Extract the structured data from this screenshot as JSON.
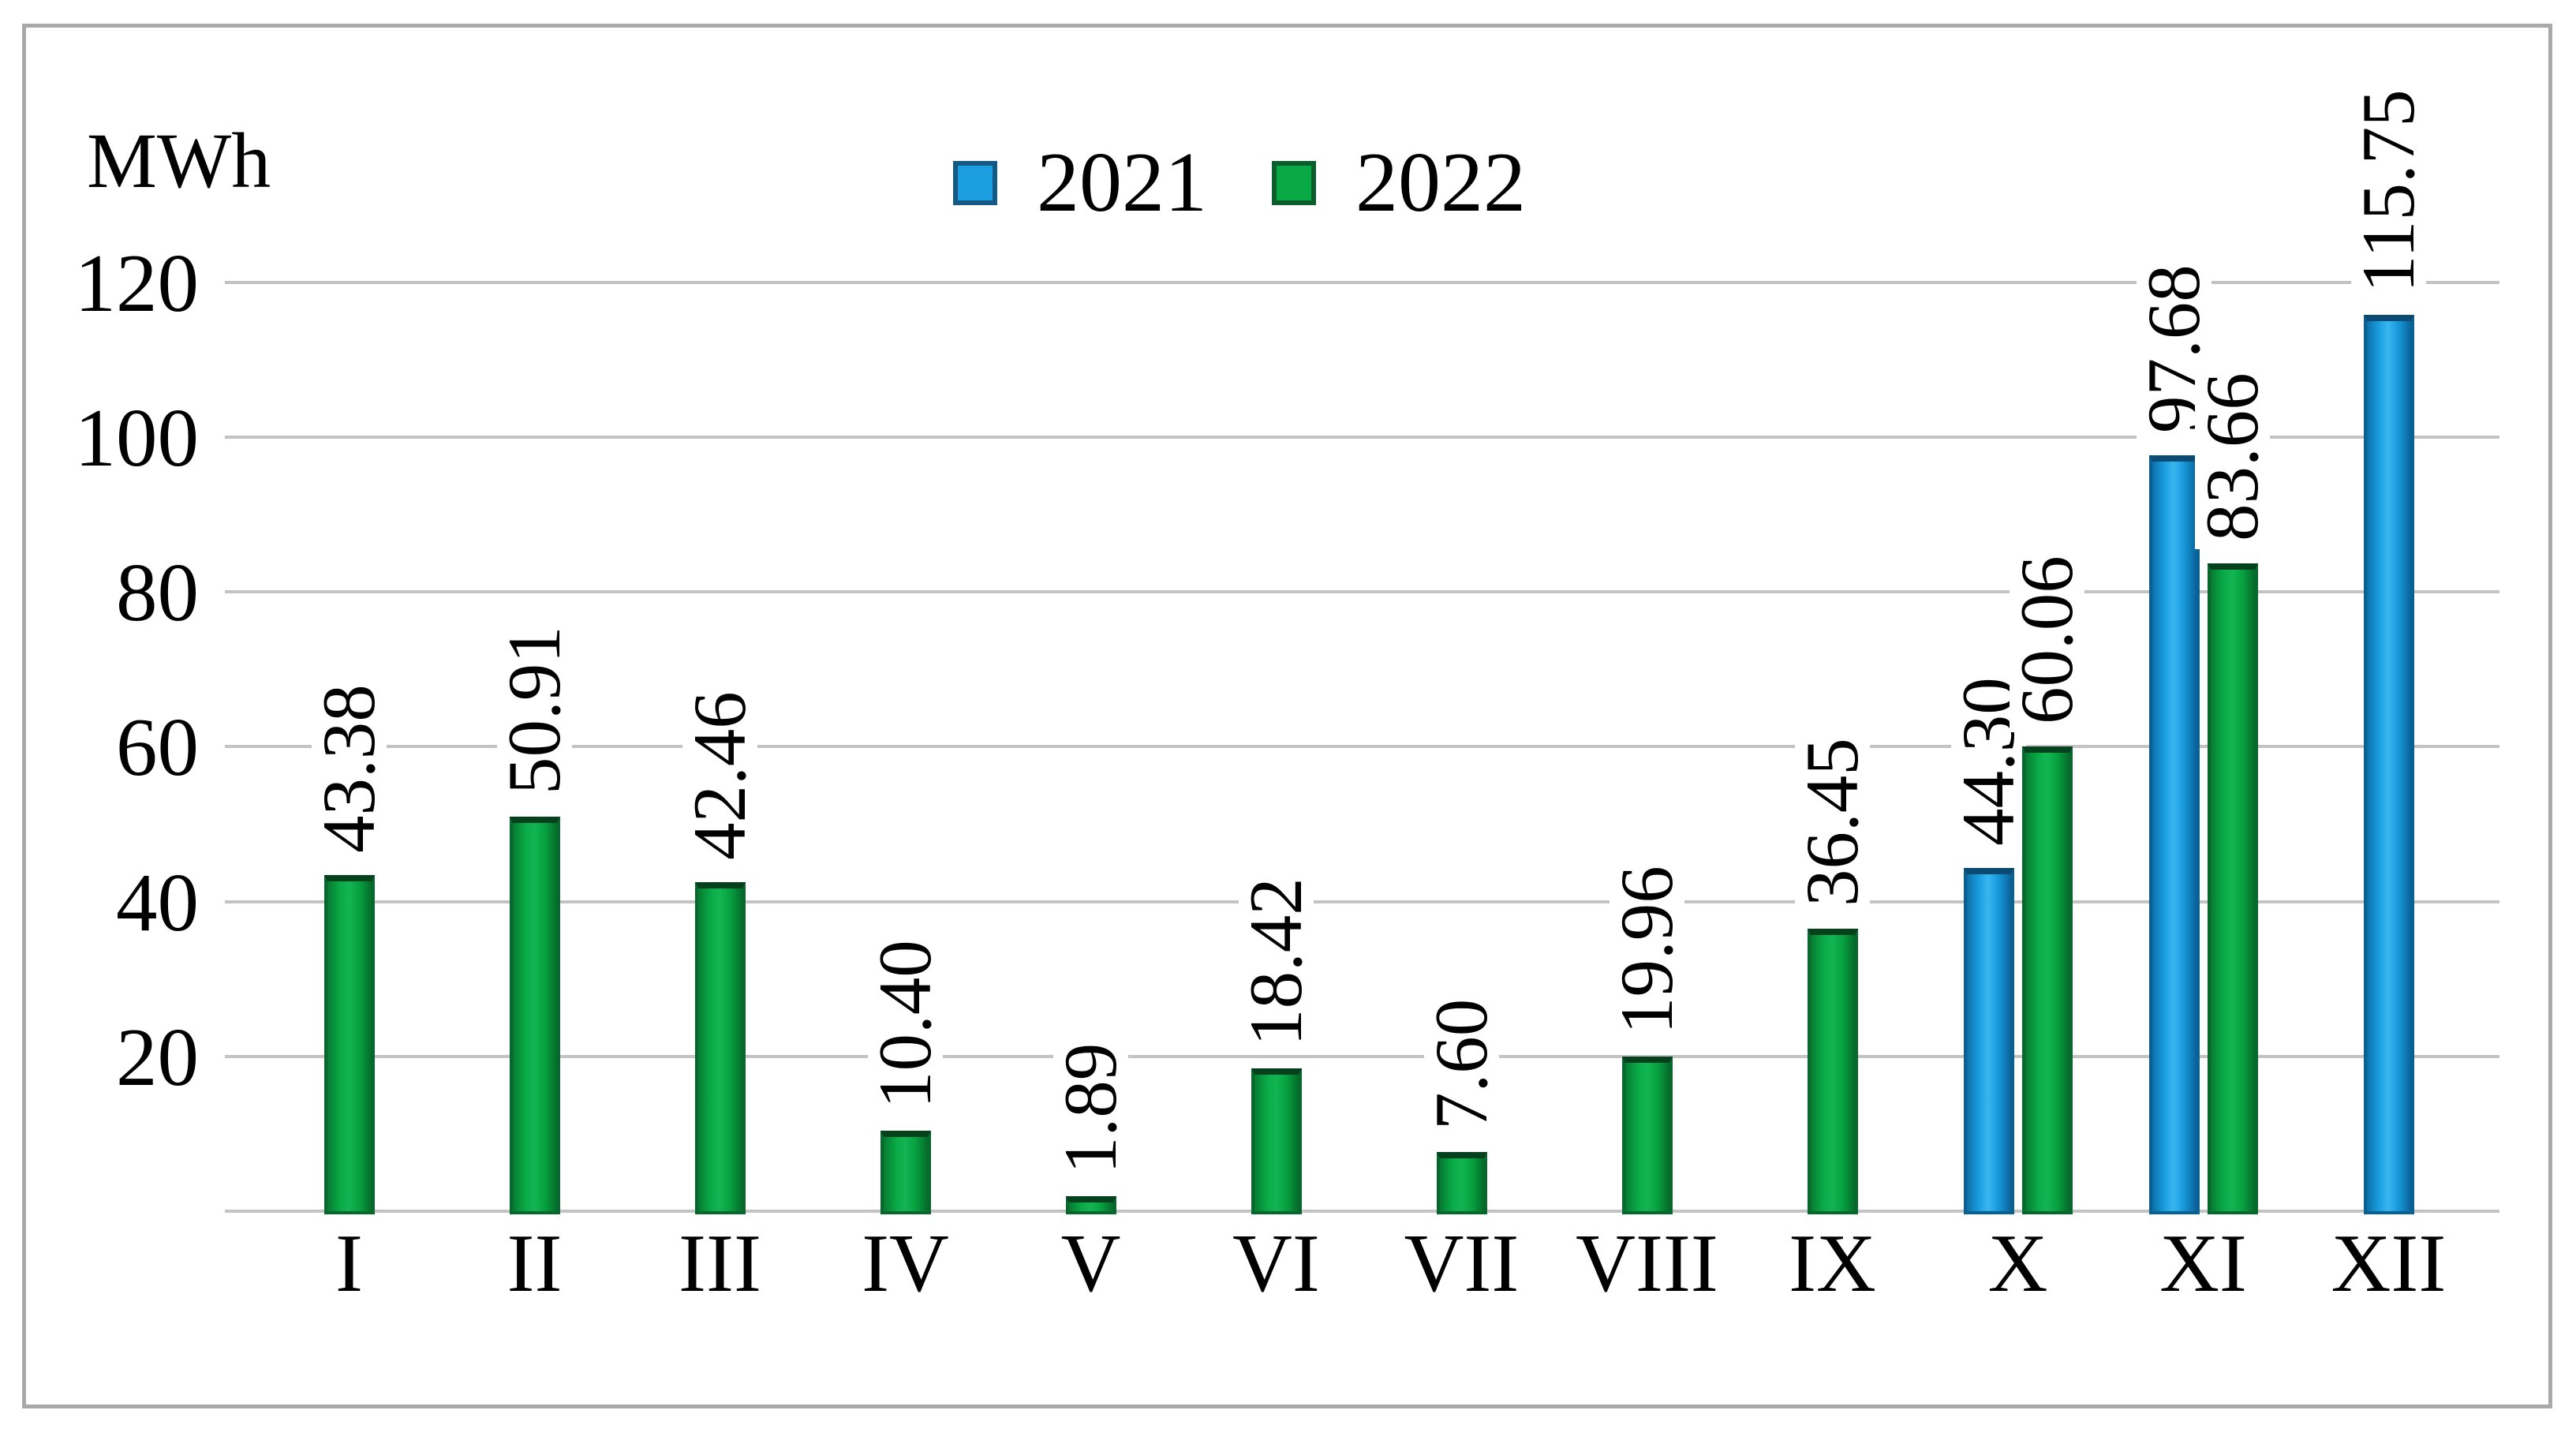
{
  "chart_data": {
    "type": "bar",
    "unit_label": "MWh",
    "categories": [
      "I",
      "II",
      "III",
      "IV",
      "V",
      "VI",
      "VII",
      "VIII",
      "IX",
      "X",
      "XI",
      "XII"
    ],
    "series": [
      {
        "name": "2021",
        "color": "#1b9fe0",
        "border_color": "#0a6191",
        "values": [
          null,
          null,
          null,
          null,
          null,
          null,
          null,
          null,
          null,
          44.3,
          97.68,
          115.75
        ],
        "labels": [
          null,
          null,
          null,
          null,
          null,
          null,
          null,
          null,
          null,
          "44.30",
          "97.68",
          "115.75"
        ]
      },
      {
        "name": "2022",
        "color": "#09a946",
        "border_color": "#07672c",
        "values": [
          43.38,
          50.91,
          42.46,
          10.4,
          1.89,
          18.42,
          7.6,
          19.96,
          36.45,
          60.06,
          83.66,
          null
        ],
        "labels": [
          "43.38",
          "50.91",
          "42.46",
          "10.40",
          "1.89",
          "18.42",
          "7.60",
          "19.96",
          "36.45",
          "60.06",
          "83.66",
          null
        ]
      }
    ],
    "y_ticks": [
      20,
      40,
      60,
      80,
      100,
      120
    ],
    "ylim": [
      0,
      130
    ],
    "grid": "on",
    "grid_color": "#c3c3c3",
    "frame_color": "#a9a9a9",
    "text_color": "#000000",
    "legend_position": "top-center",
    "value_label_rotation": -90
  }
}
